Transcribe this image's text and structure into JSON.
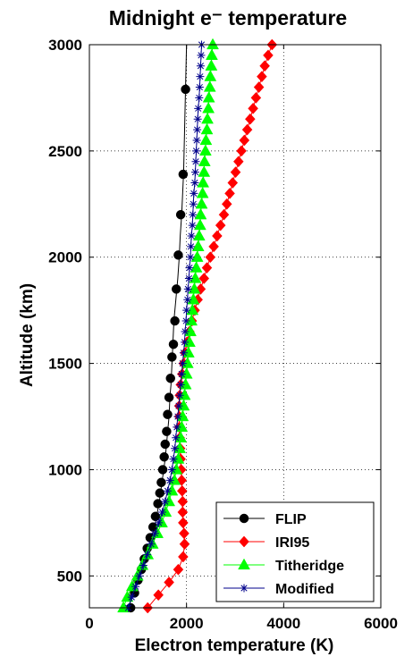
{
  "chart_data": {
    "type": "line",
    "title": "Midnight e⁻ temperature",
    "xlabel": "Electron temperature (K)",
    "ylabel": "Altitude (km)",
    "xlim": [
      0,
      6000
    ],
    "ylim": [
      350,
      3000
    ],
    "xticks": [
      "0",
      "2000",
      "4000",
      "6000"
    ],
    "yticks": [
      "500",
      "1000",
      "1500",
      "2000",
      "2500",
      "3000"
    ],
    "grid": true,
    "legend_position": "bottom-right",
    "series": [
      {
        "name": "FLIP",
        "color": "#000000",
        "marker": "circle",
        "line": [
          [
            800,
            350
          ],
          [
            880,
            400
          ],
          [
            950,
            450
          ],
          [
            1030,
            500
          ],
          [
            1110,
            550
          ],
          [
            1170,
            600
          ],
          [
            1230,
            650
          ],
          [
            1300,
            700
          ],
          [
            1360,
            750
          ],
          [
            1400,
            800
          ],
          [
            1440,
            850
          ],
          [
            1470,
            900
          ],
          [
            1500,
            950
          ],
          [
            1530,
            1000
          ],
          [
            1560,
            1050
          ],
          [
            1580,
            1100
          ],
          [
            1600,
            1150
          ],
          [
            1620,
            1200
          ],
          [
            1640,
            1250
          ],
          [
            1650,
            1300
          ],
          [
            1660,
            1350
          ],
          [
            1680,
            1400
          ],
          [
            1690,
            1450
          ],
          [
            1700,
            1500
          ],
          [
            1720,
            1600
          ],
          [
            1740,
            1700
          ],
          [
            1780,
            1800
          ],
          [
            1820,
            1900
          ],
          [
            1850,
            2000
          ],
          [
            1870,
            2100
          ],
          [
            1900,
            2200
          ],
          [
            1920,
            2300
          ],
          [
            1940,
            2400
          ],
          [
            1950,
            2500
          ],
          [
            1960,
            2600
          ],
          [
            1970,
            2700
          ],
          [
            1980,
            2800
          ],
          [
            1990,
            2900
          ],
          [
            2000,
            3000
          ]
        ],
        "markers": [
          [
            850,
            350
          ],
          [
            930,
            420
          ],
          [
            1000,
            480
          ],
          [
            1070,
            530
          ],
          [
            1130,
            580
          ],
          [
            1190,
            630
          ],
          [
            1250,
            680
          ],
          [
            1310,
            730
          ],
          [
            1360,
            780
          ],
          [
            1410,
            840
          ],
          [
            1450,
            890
          ],
          [
            1480,
            940
          ],
          [
            1510,
            1000
          ],
          [
            1540,
            1060
          ],
          [
            1560,
            1120
          ],
          [
            1590,
            1180
          ],
          [
            1610,
            1260
          ],
          [
            1640,
            1340
          ],
          [
            1670,
            1430
          ],
          [
            1700,
            1530
          ],
          [
            1730,
            1590
          ],
          [
            1760,
            1700
          ],
          [
            1790,
            1850
          ],
          [
            1830,
            2010
          ],
          [
            1880,
            2200
          ],
          [
            1930,
            2390
          ],
          [
            1980,
            2790
          ]
        ]
      },
      {
        "name": "IRI95",
        "color": "#ff0000",
        "marker": "diamond",
        "points": [
          [
            1200,
            350
          ],
          [
            1420,
            410
          ],
          [
            1640,
            470
          ],
          [
            1830,
            530
          ],
          [
            1930,
            590
          ],
          [
            1960,
            650
          ],
          [
            1950,
            700
          ],
          [
            1930,
            750
          ],
          [
            1920,
            800
          ],
          [
            1920,
            850
          ],
          [
            1910,
            900
          ],
          [
            1900,
            950
          ],
          [
            1890,
            1000
          ],
          [
            1880,
            1050
          ],
          [
            1870,
            1100
          ],
          [
            1860,
            1150
          ],
          [
            1850,
            1200
          ],
          [
            1850,
            1250
          ],
          [
            1850,
            1300
          ],
          [
            1860,
            1350
          ],
          [
            1880,
            1400
          ],
          [
            1910,
            1450
          ],
          [
            1940,
            1500
          ],
          [
            1970,
            1550
          ],
          [
            2010,
            1600
          ],
          [
            2060,
            1650
          ],
          [
            2110,
            1700
          ],
          [
            2170,
            1750
          ],
          [
            2230,
            1800
          ],
          [
            2290,
            1850
          ],
          [
            2360,
            1900
          ],
          [
            2420,
            1950
          ],
          [
            2490,
            2000
          ],
          [
            2560,
            2050
          ],
          [
            2630,
            2100
          ],
          [
            2700,
            2150
          ],
          [
            2770,
            2200
          ],
          [
            2830,
            2250
          ],
          [
            2890,
            2300
          ],
          [
            2950,
            2350
          ],
          [
            3010,
            2400
          ],
          [
            3070,
            2450
          ],
          [
            3130,
            2500
          ],
          [
            3190,
            2550
          ],
          [
            3250,
            2600
          ],
          [
            3310,
            2650
          ],
          [
            3370,
            2700
          ],
          [
            3430,
            2750
          ],
          [
            3490,
            2800
          ],
          [
            3550,
            2850
          ],
          [
            3610,
            2900
          ],
          [
            3680,
            2950
          ],
          [
            3760,
            3000
          ]
        ]
      },
      {
        "name": "Titheridge",
        "color": "#00ff00",
        "marker": "triangle",
        "points": [
          [
            700,
            350
          ],
          [
            780,
            400
          ],
          [
            880,
            450
          ],
          [
            990,
            500
          ],
          [
            1090,
            550
          ],
          [
            1200,
            600
          ],
          [
            1300,
            650
          ],
          [
            1400,
            700
          ],
          [
            1490,
            750
          ],
          [
            1570,
            800
          ],
          [
            1640,
            850
          ],
          [
            1700,
            900
          ],
          [
            1750,
            950
          ],
          [
            1790,
            1000
          ],
          [
            1830,
            1050
          ],
          [
            1860,
            1100
          ],
          [
            1880,
            1150
          ],
          [
            1900,
            1200
          ],
          [
            1920,
            1250
          ],
          [
            1940,
            1300
          ],
          [
            1960,
            1350
          ],
          [
            1980,
            1400
          ],
          [
            2000,
            1450
          ],
          [
            2020,
            1500
          ],
          [
            2040,
            1550
          ],
          [
            2060,
            1600
          ],
          [
            2080,
            1650
          ],
          [
            2100,
            1700
          ],
          [
            2120,
            1750
          ],
          [
            2140,
            1800
          ],
          [
            2160,
            1850
          ],
          [
            2180,
            1900
          ],
          [
            2200,
            1950
          ],
          [
            2220,
            2000
          ],
          [
            2240,
            2050
          ],
          [
            2260,
            2100
          ],
          [
            2280,
            2150
          ],
          [
            2290,
            2200
          ],
          [
            2310,
            2250
          ],
          [
            2330,
            2300
          ],
          [
            2340,
            2350
          ],
          [
            2360,
            2400
          ],
          [
            2370,
            2450
          ],
          [
            2390,
            2500
          ],
          [
            2400,
            2550
          ],
          [
            2420,
            2600
          ],
          [
            2430,
            2650
          ],
          [
            2450,
            2700
          ],
          [
            2460,
            2750
          ],
          [
            2480,
            2800
          ],
          [
            2490,
            2850
          ],
          [
            2510,
            2900
          ],
          [
            2520,
            2950
          ],
          [
            2540,
            3000
          ]
        ]
      },
      {
        "name": "Modified",
        "color": "#00008b",
        "marker": "star",
        "points": [
          [
            800,
            350
          ],
          [
            870,
            400
          ],
          [
            950,
            450
          ],
          [
            1030,
            500
          ],
          [
            1110,
            550
          ],
          [
            1190,
            600
          ],
          [
            1270,
            650
          ],
          [
            1350,
            700
          ],
          [
            1430,
            750
          ],
          [
            1500,
            800
          ],
          [
            1560,
            850
          ],
          [
            1610,
            900
          ],
          [
            1660,
            950
          ],
          [
            1700,
            1000
          ],
          [
            1730,
            1050
          ],
          [
            1760,
            1100
          ],
          [
            1780,
            1150
          ],
          [
            1800,
            1200
          ],
          [
            1820,
            1250
          ],
          [
            1840,
            1300
          ],
          [
            1860,
            1350
          ],
          [
            1880,
            1400
          ],
          [
            1900,
            1450
          ],
          [
            1920,
            1500
          ],
          [
            1940,
            1550
          ],
          [
            1960,
            1600
          ],
          [
            1970,
            1650
          ],
          [
            1990,
            1700
          ],
          [
            2000,
            1750
          ],
          [
            2020,
            1800
          ],
          [
            2030,
            1850
          ],
          [
            2050,
            1900
          ],
          [
            2060,
            1950
          ],
          [
            2080,
            2000
          ],
          [
            2090,
            2050
          ],
          [
            2100,
            2100
          ],
          [
            2120,
            2150
          ],
          [
            2130,
            2200
          ],
          [
            2140,
            2250
          ],
          [
            2150,
            2300
          ],
          [
            2170,
            2350
          ],
          [
            2180,
            2400
          ],
          [
            2190,
            2450
          ],
          [
            2200,
            2500
          ],
          [
            2210,
            2550
          ],
          [
            2220,
            2600
          ],
          [
            2230,
            2650
          ],
          [
            2240,
            2700
          ],
          [
            2260,
            2750
          ],
          [
            2270,
            2800
          ],
          [
            2280,
            2850
          ],
          [
            2290,
            2900
          ],
          [
            2300,
            2950
          ],
          [
            2310,
            3000
          ]
        ]
      }
    ]
  }
}
